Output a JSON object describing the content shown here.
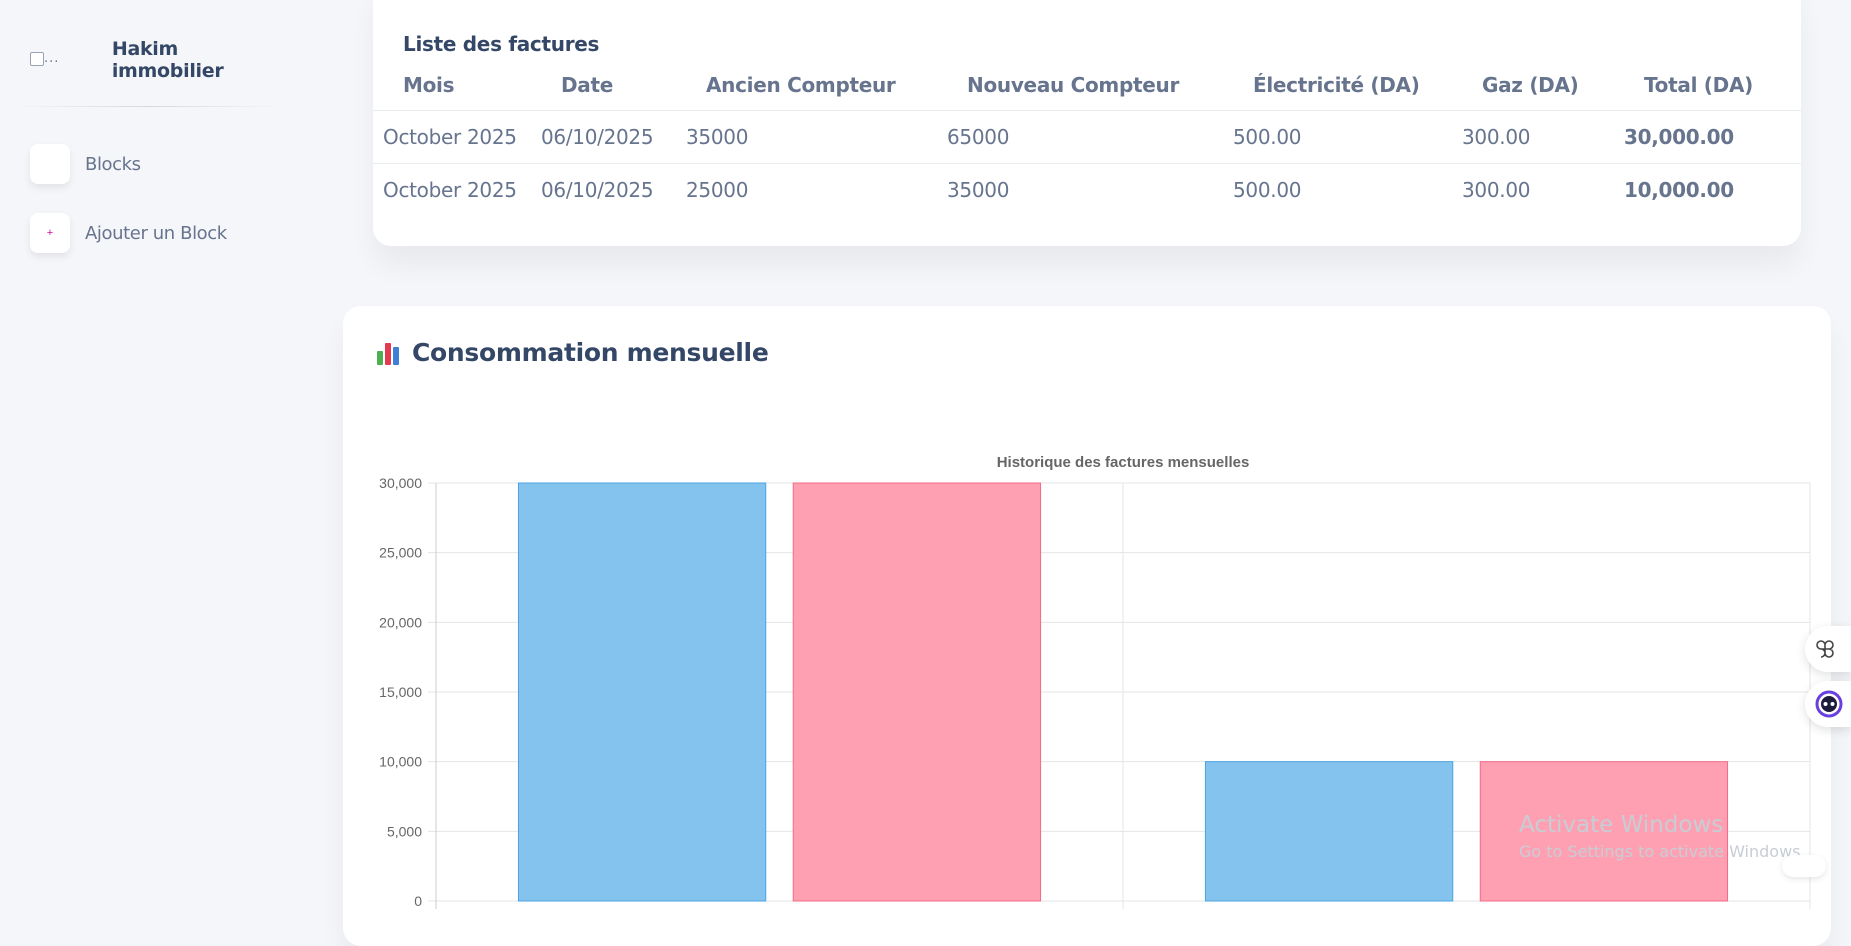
{
  "brand": {
    "name": "Hakim immobilier",
    "logo_alt": "..."
  },
  "sidebar": {
    "items": [
      {
        "label": "Blocks",
        "icon": "blocks-icon"
      },
      {
        "label": "Ajouter un Block",
        "icon": "plus-icon",
        "icon_glyph": "+"
      }
    ]
  },
  "invoices": {
    "title": "Liste des factures",
    "columns": [
      "Mois",
      "Date",
      "Ancien Compteur",
      "Nouveau Compteur",
      "Électricité (DA)",
      "Gaz (DA)",
      "Total (DA)"
    ],
    "rows": [
      [
        "October 2025",
        "06/10/2025",
        "35000",
        "65000",
        "500.00",
        "300.00",
        "30,000.00"
      ],
      [
        "October 2025",
        "06/10/2025",
        "25000",
        "35000",
        "500.00",
        "300.00",
        "10,000.00"
      ]
    ]
  },
  "consumption": {
    "title": "Consommation mensuelle",
    "icon": "bar-chart-icon"
  },
  "chart_data": {
    "type": "bar",
    "title": "Historique des factures mensuelles",
    "categories": [
      "",
      ""
    ],
    "series": [
      {
        "values": [
          30000,
          10000
        ],
        "color": "#85c3ef",
        "border": "#4aa3e0"
      },
      {
        "values": [
          30000,
          10000
        ],
        "color": "#fea0b2",
        "border": "#f36b87"
      }
    ],
    "ylim": [
      0,
      30000
    ],
    "yticks": [
      "30,000",
      "25,000",
      "20,000",
      "15,000",
      "10,000",
      "5,000",
      "0"
    ],
    "ytick_values": [
      30000,
      25000,
      20000,
      15000,
      10000,
      5000,
      0
    ],
    "grid": true
  },
  "watermark": {
    "line1": "Activate Windows",
    "line2": "Go to Settings to activate Windows."
  },
  "colors": {
    "accent": "#cb0c9f",
    "text_dark": "#344767",
    "text_muted": "#67748e"
  }
}
